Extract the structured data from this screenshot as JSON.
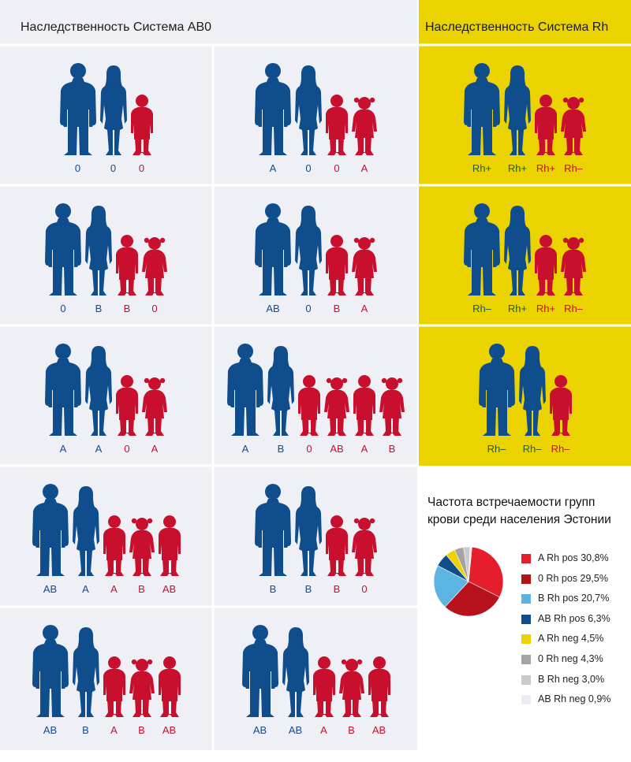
{
  "abo": {
    "title": "Наследственность Система AB0",
    "cells": [
      {
        "members": [
          {
            "type": "father",
            "color": "blue",
            "label": "0"
          },
          {
            "type": "mother",
            "color": "blue",
            "label": "0"
          },
          {
            "type": "boy",
            "color": "red",
            "label": "0"
          }
        ]
      },
      {
        "members": [
          {
            "type": "father",
            "color": "blue",
            "label": "A"
          },
          {
            "type": "mother",
            "color": "blue",
            "label": "0"
          },
          {
            "type": "boy",
            "color": "red",
            "label": "0"
          },
          {
            "type": "girl",
            "color": "red",
            "label": "A"
          }
        ]
      },
      {
        "members": [
          {
            "type": "father",
            "color": "blue",
            "label": "0"
          },
          {
            "type": "mother",
            "color": "blue",
            "label": "B"
          },
          {
            "type": "boy",
            "color": "red",
            "label": "B"
          },
          {
            "type": "girl",
            "color": "red",
            "label": "0"
          }
        ]
      },
      {
        "members": [
          {
            "type": "father",
            "color": "blue",
            "label": "AB"
          },
          {
            "type": "mother",
            "color": "blue",
            "label": "0"
          },
          {
            "type": "boy",
            "color": "red",
            "label": "B"
          },
          {
            "type": "girl",
            "color": "red",
            "label": "A"
          }
        ]
      },
      {
        "members": [
          {
            "type": "father",
            "color": "blue",
            "label": "A"
          },
          {
            "type": "mother",
            "color": "blue",
            "label": "A"
          },
          {
            "type": "boy",
            "color": "red",
            "label": "0"
          },
          {
            "type": "girl",
            "color": "red",
            "label": "A"
          }
        ]
      },
      {
        "members": [
          {
            "type": "father",
            "color": "blue",
            "label": "A"
          },
          {
            "type": "mother",
            "color": "blue",
            "label": "B"
          },
          {
            "type": "boy",
            "color": "red",
            "label": "0"
          },
          {
            "type": "girl",
            "color": "red",
            "label": "AB"
          },
          {
            "type": "boy",
            "color": "red",
            "label": "A"
          },
          {
            "type": "girl",
            "color": "red",
            "label": "B"
          }
        ]
      },
      {
        "members": [
          {
            "type": "father",
            "color": "blue",
            "label": "AB"
          },
          {
            "type": "mother",
            "color": "blue",
            "label": "A"
          },
          {
            "type": "boy",
            "color": "red",
            "label": "A"
          },
          {
            "type": "girl",
            "color": "red",
            "label": "B"
          },
          {
            "type": "boy",
            "color": "red",
            "label": "AB"
          }
        ]
      },
      {
        "members": [
          {
            "type": "father",
            "color": "blue",
            "label": "B"
          },
          {
            "type": "mother",
            "color": "blue",
            "label": "B"
          },
          {
            "type": "boy",
            "color": "red",
            "label": "B"
          },
          {
            "type": "girl",
            "color": "red",
            "label": "0"
          }
        ]
      },
      {
        "members": [
          {
            "type": "father",
            "color": "blue",
            "label": "AB"
          },
          {
            "type": "mother",
            "color": "blue",
            "label": "B"
          },
          {
            "type": "boy",
            "color": "red",
            "label": "A"
          },
          {
            "type": "girl",
            "color": "red",
            "label": "B"
          },
          {
            "type": "boy",
            "color": "red",
            "label": "AB"
          }
        ]
      },
      {
        "members": [
          {
            "type": "father",
            "color": "blue",
            "label": "AB"
          },
          {
            "type": "mother",
            "color": "blue",
            "label": "AB"
          },
          {
            "type": "boy",
            "color": "red",
            "label": "A"
          },
          {
            "type": "girl",
            "color": "red",
            "label": "B"
          },
          {
            "type": "boy",
            "color": "red",
            "label": "AB"
          }
        ]
      }
    ]
  },
  "rh": {
    "title": "Наследственность Система Rh",
    "cells": [
      {
        "members": [
          {
            "type": "father",
            "color": "blue",
            "label": "Rh+"
          },
          {
            "type": "mother",
            "color": "blue",
            "label": "Rh+"
          },
          {
            "type": "boy",
            "color": "red",
            "label": "Rh+"
          },
          {
            "type": "girl",
            "color": "red",
            "label": "Rh–"
          }
        ]
      },
      {
        "members": [
          {
            "type": "father",
            "color": "blue",
            "label": "Rh–"
          },
          {
            "type": "mother",
            "color": "blue",
            "label": "Rh+"
          },
          {
            "type": "boy",
            "color": "red",
            "label": "Rh+"
          },
          {
            "type": "girl",
            "color": "red",
            "label": "Rh–"
          }
        ]
      },
      {
        "members": [
          {
            "type": "father",
            "color": "blue",
            "label": "Rh–"
          },
          {
            "type": "mother",
            "color": "blue",
            "label": "Rh–"
          },
          {
            "type": "boy",
            "color": "red",
            "label": "Rh–"
          }
        ]
      }
    ]
  },
  "colors": {
    "figure_blue": "#0f4d8c",
    "figure_red": "#c8102e",
    "panel_grey": "#efeff6",
    "rh_yellow": "#ebd300",
    "rh_label_green": "#1e5a4a"
  },
  "pie": {
    "title": "Частота встречаемости групп крови среди населения Эстонии",
    "chart_data": {
      "type": "pie",
      "slices": [
        {
          "label": "A Rh pos 30,8%",
          "value": 30.8,
          "color": "#e41e2d"
        },
        {
          "label": "0 Rh pos 29,5%",
          "value": 29.5,
          "color": "#b5121b"
        },
        {
          "label": "B Rh pos 20,7%",
          "value": 20.7,
          "color": "#5bb5e0"
        },
        {
          "label": "AB Rh pos 6,3%",
          "value": 6.3,
          "color": "#0f4d8c"
        },
        {
          "label": "A Rh neg 4,5%",
          "value": 4.5,
          "color": "#ebd300"
        },
        {
          "label": "0 Rh neg 4,3%",
          "value": 4.3,
          "color": "#a4a4a4"
        },
        {
          "label": "B Rh neg 3,0%",
          "value": 3.0,
          "color": "#cacaca"
        },
        {
          "label": "AB Rh neg 0,9%",
          "value": 0.9,
          "color": "#ecebf4"
        }
      ]
    }
  }
}
